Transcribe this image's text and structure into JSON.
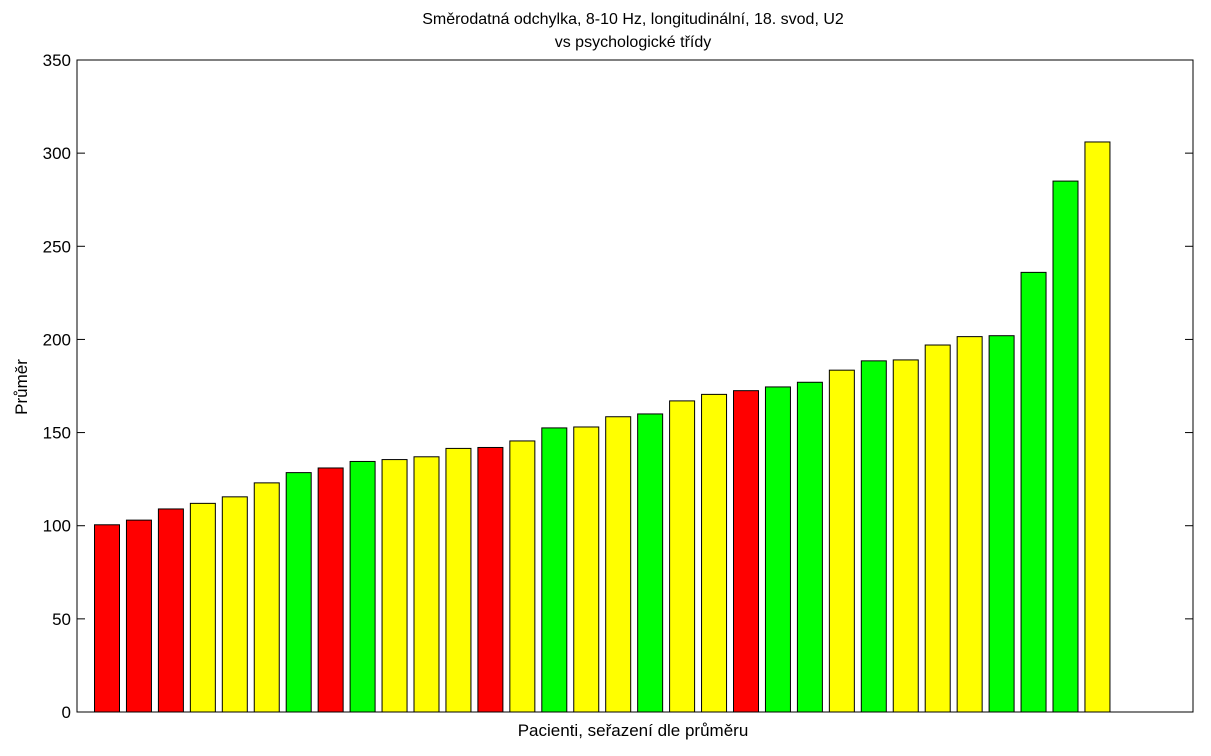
{
  "chart_data": {
    "type": "bar",
    "title": "Směrodatná odchylka, 8-10 Hz, longitudinální, 18. svod, U2",
    "subtitle": "vs psychologické třídy",
    "xlabel": "Pacienti, seřazení dle průměru",
    "ylabel": "Průměr",
    "ylim": [
      0,
      350
    ],
    "yticks": [
      "0",
      "50",
      "100",
      "150",
      "200",
      "250",
      "300",
      "350"
    ],
    "grid": false,
    "legend": "none",
    "colors": {
      "red": "#ff0000",
      "yellow": "#ffff00",
      "green": "#00ff00",
      "bar_edge": "#000000",
      "axes": "#000000",
      "background": "#ffffff"
    },
    "values": [
      100.5,
      103,
      109,
      112,
      115.5,
      123,
      128.5,
      131,
      134.5,
      135.5,
      137,
      141.5,
      142,
      145.5,
      152.5,
      153,
      158.5,
      160,
      167,
      170.5,
      172.5,
      174.5,
      177,
      183.5,
      188.5,
      189,
      197,
      201.5,
      202,
      236,
      285,
      306
    ],
    "bar_colors": [
      "red",
      "red",
      "red",
      "yellow",
      "yellow",
      "yellow",
      "green",
      "red",
      "green",
      "yellow",
      "yellow",
      "yellow",
      "red",
      "yellow",
      "green",
      "yellow",
      "yellow",
      "green",
      "yellow",
      "yellow",
      "red",
      "green",
      "green",
      "yellow",
      "green",
      "yellow",
      "yellow",
      "yellow",
      "green",
      "green",
      "green",
      "yellow"
    ]
  }
}
